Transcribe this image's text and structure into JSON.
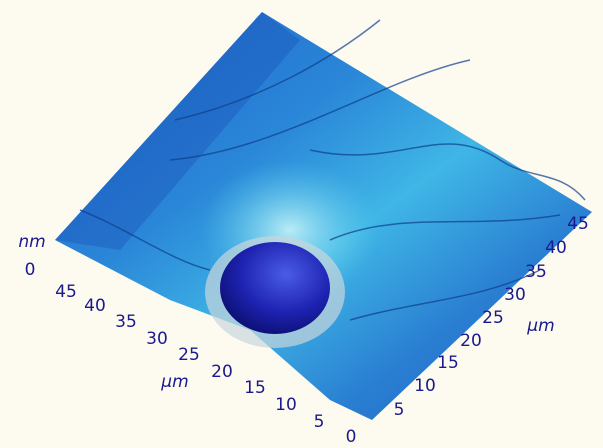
{
  "z_axis": {
    "label": "nm",
    "ticks": [
      0
    ]
  },
  "front_axis": {
    "label": "µm",
    "ticks": [
      45,
      40,
      35,
      30,
      25,
      20,
      15,
      10,
      5,
      0
    ]
  },
  "right_axis": {
    "label": "µm",
    "ticks": [
      5,
      10,
      15,
      20,
      25,
      30,
      35,
      40,
      45
    ]
  }
}
